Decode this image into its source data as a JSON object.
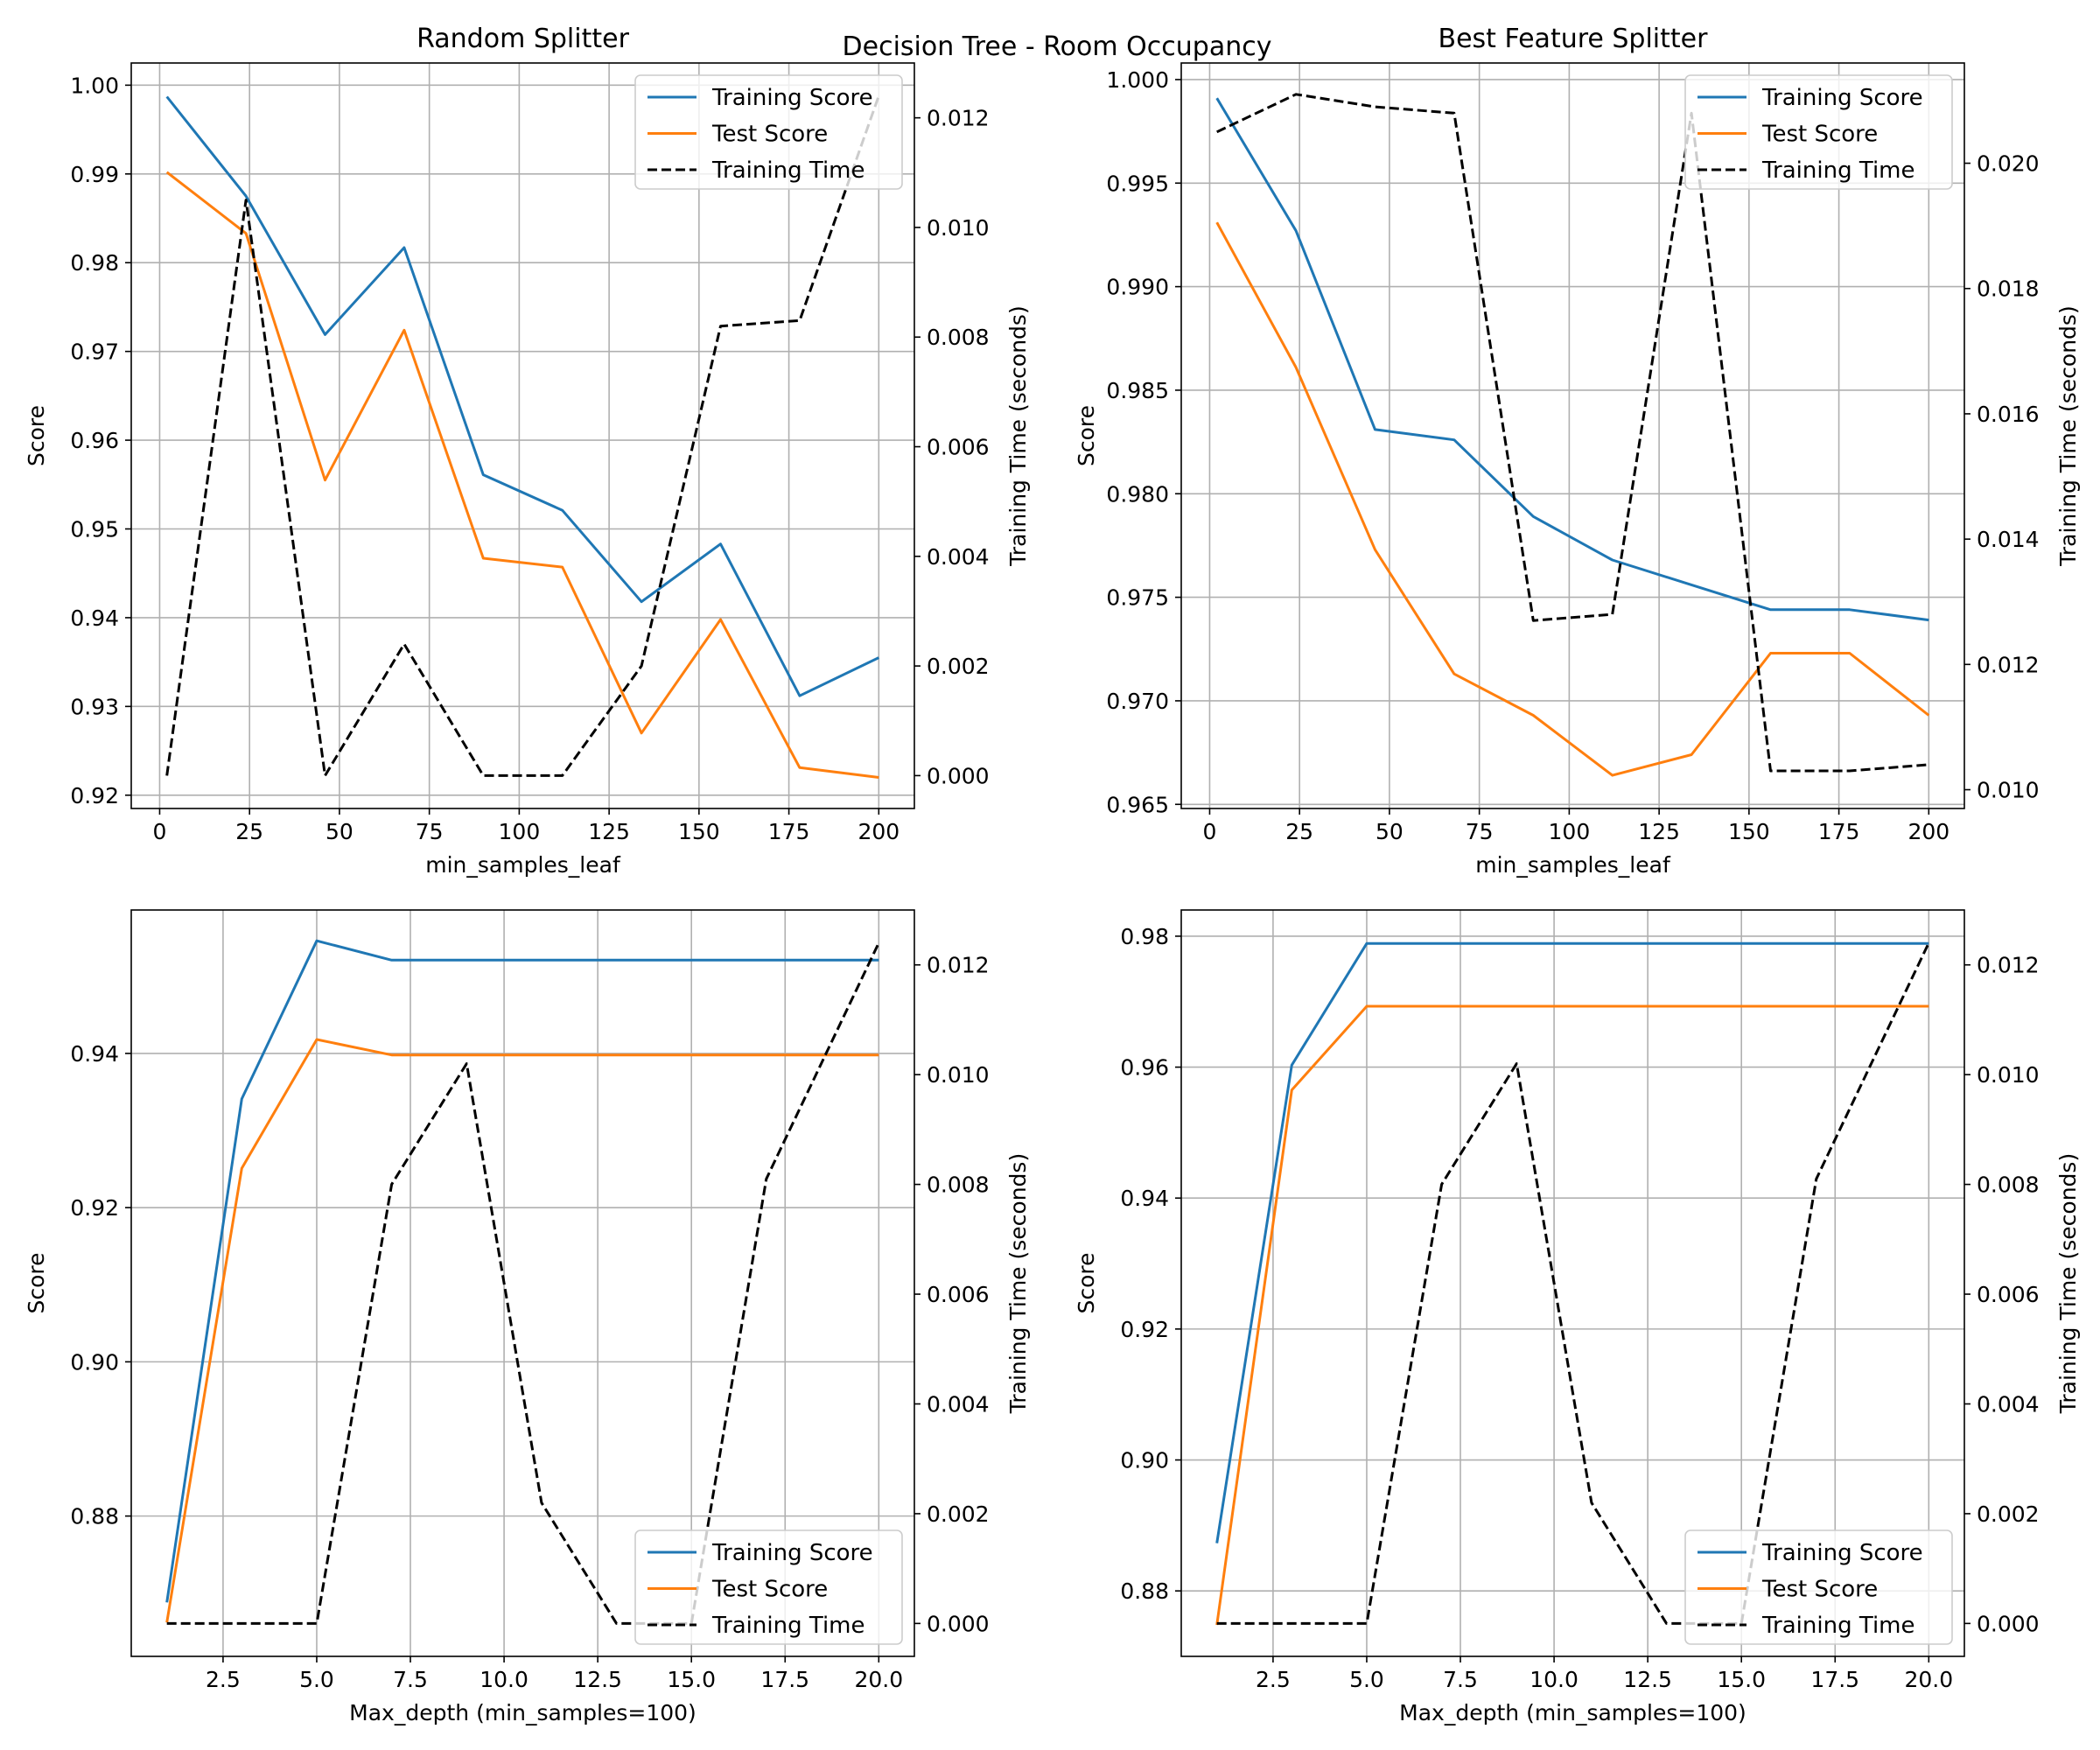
{
  "figure_title": "Decision Tree - Room Occupancy",
  "colors": {
    "training_score": "#1f77b4",
    "test_score": "#ff7f0e",
    "training_time": "#000000",
    "grid": "#b0b0b0"
  },
  "chart_data": [
    {
      "type": "line",
      "title": "Random Splitter",
      "xlabel": "min_samples_leaf",
      "ylabel": "Score",
      "y2label": "Training Time (seconds)",
      "grid": true,
      "legend_position": "upper right",
      "xlim": [
        -7.9,
        209.9
      ],
      "ylim": [
        0.9185,
        1.0025
      ],
      "y2lim": [
        -0.0006,
        0.013
      ],
      "xticks": [
        0,
        25,
        50,
        75,
        100,
        125,
        150,
        175,
        200
      ],
      "yticks": [
        0.92,
        0.93,
        0.94,
        0.95,
        0.96,
        0.97,
        0.98,
        0.99,
        1.0
      ],
      "y2ticks": [
        0.0,
        0.002,
        0.004,
        0.006,
        0.008,
        0.01,
        0.012
      ],
      "xtick_labels": [
        "0",
        "25",
        "50",
        "75",
        "100",
        "125",
        "150",
        "175",
        "200"
      ],
      "ytick_labels": [
        "0.92",
        "0.93",
        "0.94",
        "0.95",
        "0.96",
        "0.97",
        "0.98",
        "0.99",
        "1.00"
      ],
      "y2tick_labels": [
        "0.000",
        "0.002",
        "0.004",
        "0.006",
        "0.008",
        "0.010",
        "0.012"
      ],
      "x": [
        2,
        24,
        46,
        68,
        90,
        112,
        134,
        156,
        178,
        200
      ],
      "series": [
        {
          "name": "Training Score",
          "axis": "left",
          "style": "solid",
          "color": "#1f77b4",
          "values": [
            0.9987,
            0.9875,
            0.9719,
            0.9817,
            0.9561,
            0.9521,
            0.9418,
            0.9483,
            0.9312,
            0.9355
          ]
        },
        {
          "name": "Test Score",
          "axis": "left",
          "style": "solid",
          "color": "#ff7f0e",
          "values": [
            0.9902,
            0.9833,
            0.9555,
            0.9724,
            0.9467,
            0.9457,
            0.927,
            0.9398,
            0.9231,
            0.922
          ]
        },
        {
          "name": "Training Time",
          "axis": "right",
          "style": "dashed",
          "color": "#000000",
          "values": [
            0.0,
            0.0105,
            0.0,
            0.0024,
            0.0,
            0.0,
            0.002,
            0.0082,
            0.0083,
            0.0124
          ]
        }
      ]
    },
    {
      "type": "line",
      "title": "Best Feature Splitter",
      "xlabel": "min_samples_leaf",
      "ylabel": "Score",
      "y2label": "Training Time (seconds)",
      "grid": true,
      "legend_position": "upper right",
      "xlim": [
        -7.9,
        209.9
      ],
      "ylim": [
        0.9648,
        1.0008
      ],
      "y2lim": [
        0.0097,
        0.0216
      ],
      "xticks": [
        0,
        25,
        50,
        75,
        100,
        125,
        150,
        175,
        200
      ],
      "yticks": [
        0.965,
        0.97,
        0.975,
        0.98,
        0.985,
        0.99,
        0.995,
        1.0
      ],
      "y2ticks": [
        0.01,
        0.012,
        0.014,
        0.016,
        0.018,
        0.02
      ],
      "xtick_labels": [
        "0",
        "25",
        "50",
        "75",
        "100",
        "125",
        "150",
        "175",
        "200"
      ],
      "ytick_labels": [
        "0.965",
        "0.970",
        "0.975",
        "0.980",
        "0.985",
        "0.990",
        "0.995",
        "1.000"
      ],
      "y2tick_labels": [
        "0.010",
        "0.012",
        "0.014",
        "0.016",
        "0.018",
        "0.020"
      ],
      "x": [
        2,
        24,
        46,
        68,
        90,
        112,
        134,
        156,
        178,
        200
      ],
      "series": [
        {
          "name": "Training Score",
          "axis": "left",
          "style": "solid",
          "color": "#1f77b4",
          "values": [
            0.9991,
            0.9927,
            0.9831,
            0.9826,
            0.9789,
            0.9768,
            0.9756,
            0.9744,
            0.9744,
            0.9739
          ]
        },
        {
          "name": "Test Score",
          "axis": "left",
          "style": "solid",
          "color": "#ff7f0e",
          "values": [
            0.9931,
            0.9861,
            0.9773,
            0.9713,
            0.9693,
            0.9664,
            0.9674,
            0.9723,
            0.9723,
            0.9693
          ]
        },
        {
          "name": "Training Time",
          "axis": "right",
          "style": "dashed",
          "color": "#000000",
          "values": [
            0.0205,
            0.0211,
            0.0209,
            0.0208,
            0.0127,
            0.0128,
            0.0208,
            0.0103,
            0.0103,
            0.0104
          ]
        }
      ]
    },
    {
      "type": "line",
      "title": "",
      "xlabel": "Max_depth (min_samples=100)",
      "ylabel": "Score",
      "y2label": "Training Time (seconds)",
      "grid": true,
      "legend_position": "lower right",
      "xlim": [
        0.05,
        20.95
      ],
      "ylim": [
        0.8618,
        0.9586
      ],
      "y2lim": [
        -0.0006,
        0.013
      ],
      "xticks": [
        2.5,
        5.0,
        7.5,
        10.0,
        12.5,
        15.0,
        17.5,
        20.0
      ],
      "yticks": [
        0.88,
        0.9,
        0.92,
        0.94
      ],
      "y2ticks": [
        0.0,
        0.002,
        0.004,
        0.006,
        0.008,
        0.01,
        0.012
      ],
      "xtick_labels": [
        "2.5",
        "5.0",
        "7.5",
        "10.0",
        "12.5",
        "15.0",
        "17.5",
        "20.0"
      ],
      "ytick_labels": [
        "0.88",
        "0.90",
        "0.92",
        "0.94"
      ],
      "y2tick_labels": [
        "0.000",
        "0.002",
        "0.004",
        "0.006",
        "0.008",
        "0.010",
        "0.012"
      ],
      "x": [
        1,
        3,
        5,
        7,
        9,
        11,
        13,
        15,
        17,
        20
      ],
      "series": [
        {
          "name": "Training Score",
          "axis": "left",
          "style": "solid",
          "color": "#1f77b4",
          "values": [
            0.8688,
            0.9341,
            0.9546,
            0.9521,
            0.9521,
            0.9521,
            0.9521,
            0.9521,
            0.9521,
            0.9521
          ]
        },
        {
          "name": "Test Score",
          "axis": "left",
          "style": "solid",
          "color": "#ff7f0e",
          "values": [
            0.8662,
            0.9251,
            0.9418,
            0.9398,
            0.9398,
            0.9398,
            0.9398,
            0.9398,
            0.9398,
            0.9398
          ]
        },
        {
          "name": "Training Time",
          "axis": "right",
          "style": "dashed",
          "color": "#000000",
          "values": [
            0.0,
            0.0,
            0.0,
            0.008,
            0.0102,
            0.0022,
            0.0,
            0.0,
            0.0081,
            0.0124
          ]
        }
      ]
    },
    {
      "type": "line",
      "title": "",
      "xlabel": "Max_depth (min_samples=100)",
      "ylabel": "Score",
      "y2label": "Training Time (seconds)",
      "grid": true,
      "legend_position": "lower right",
      "xlim": [
        0.05,
        20.95
      ],
      "ylim": [
        0.87,
        0.984
      ],
      "y2lim": [
        -0.0006,
        0.013
      ],
      "xticks": [
        2.5,
        5.0,
        7.5,
        10.0,
        12.5,
        15.0,
        17.5,
        20.0
      ],
      "yticks": [
        0.88,
        0.9,
        0.92,
        0.94,
        0.96,
        0.98
      ],
      "y2ticks": [
        0.0,
        0.002,
        0.004,
        0.006,
        0.008,
        0.01,
        0.012
      ],
      "xtick_labels": [
        "2.5",
        "5.0",
        "7.5",
        "10.0",
        "12.5",
        "15.0",
        "17.5",
        "20.0"
      ],
      "ytick_labels": [
        "0.88",
        "0.90",
        "0.92",
        "0.94",
        "0.96",
        "0.98"
      ],
      "y2tick_labels": [
        "0.000",
        "0.002",
        "0.004",
        "0.006",
        "0.008",
        "0.010",
        "0.012"
      ],
      "x": [
        1,
        3,
        5,
        7,
        9,
        11,
        13,
        15,
        17,
        20
      ],
      "series": [
        {
          "name": "Training Score",
          "axis": "left",
          "style": "solid",
          "color": "#1f77b4",
          "values": [
            0.8873,
            0.9603,
            0.9789,
            0.9789,
            0.9789,
            0.9789,
            0.9789,
            0.9789,
            0.9789,
            0.9789
          ]
        },
        {
          "name": "Test Score",
          "axis": "left",
          "style": "solid",
          "color": "#ff7f0e",
          "values": [
            0.8748,
            0.9565,
            0.9693,
            0.9693,
            0.9693,
            0.9693,
            0.9693,
            0.9693,
            0.9693,
            0.9693
          ]
        },
        {
          "name": "Training Time",
          "axis": "right",
          "style": "dashed",
          "color": "#000000",
          "values": [
            0.0,
            0.0,
            0.0,
            0.008,
            0.0102,
            0.0022,
            0.0,
            0.0,
            0.0081,
            0.0124
          ]
        }
      ]
    }
  ]
}
